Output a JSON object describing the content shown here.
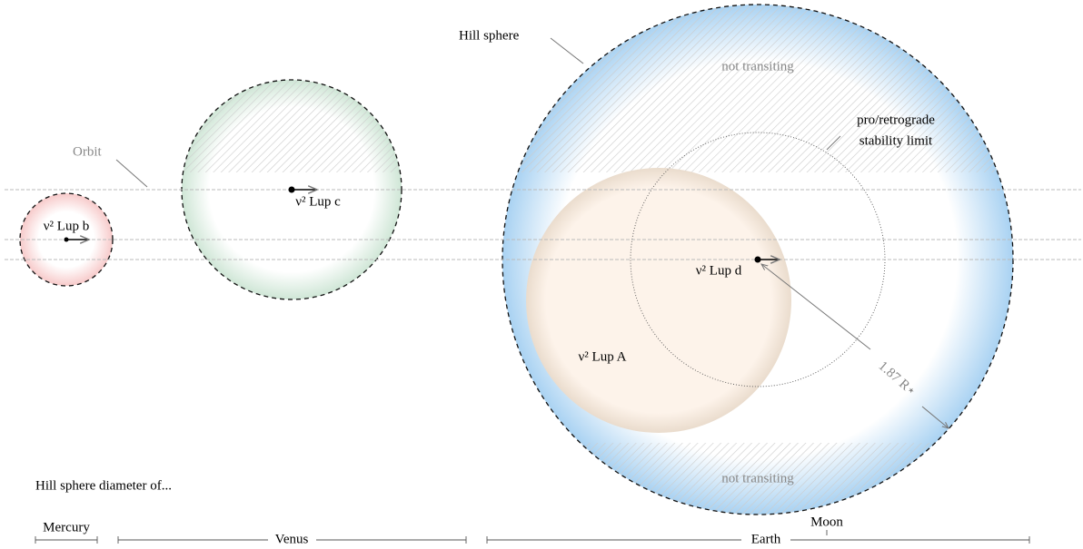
{
  "labels": {
    "hill_sphere": "Hill sphere",
    "not_transiting_top": "not transiting",
    "not_transiting_bottom": "not transiting",
    "stability_1": "pro/retrograde",
    "stability_2": "stability limit",
    "orbit": "Orbit",
    "planet_b": "ν² Lup b",
    "planet_c": "ν² Lup c",
    "planet_d": "ν² Lup d",
    "star": "ν² Lup A",
    "radius": "1.87 R⋆"
  },
  "scale": {
    "title": "Hill sphere diameter of...",
    "mercury": "Mercury",
    "venus": "Venus",
    "earth": "Earth",
    "moon": "Moon"
  }
}
